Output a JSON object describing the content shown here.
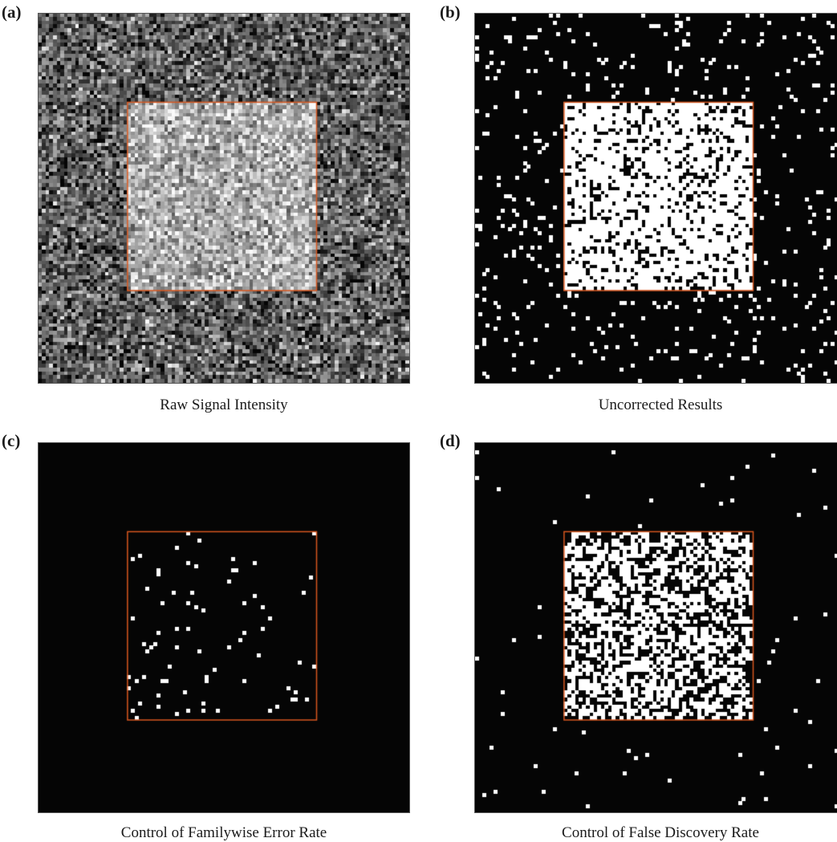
{
  "figure": {
    "grid_cells": 100,
    "signal_region_cells": {
      "start": 24,
      "end": 75
    },
    "region_outline_color": "#d8571f",
    "panels": [
      {
        "letter": "(a)",
        "caption": "Raw Signal Intensity",
        "mode": "intensity",
        "inside_detect_rate": 1.0,
        "outside_detect_rate": 0.0
      },
      {
        "letter": "(b)",
        "caption": "Uncorrected Results",
        "mode": "binary",
        "inside_detect_rate": 0.78,
        "outside_detect_rate": 0.05
      },
      {
        "letter": "(c)",
        "caption": "Control of Familywise Error Rate",
        "mode": "binary",
        "inside_detect_rate": 0.03,
        "outside_detect_rate": 0.0
      },
      {
        "letter": "(d)",
        "caption": "Control of False Discovery Rate",
        "mode": "binary",
        "inside_detect_rate": 0.55,
        "outside_detect_rate": 0.007
      }
    ]
  }
}
